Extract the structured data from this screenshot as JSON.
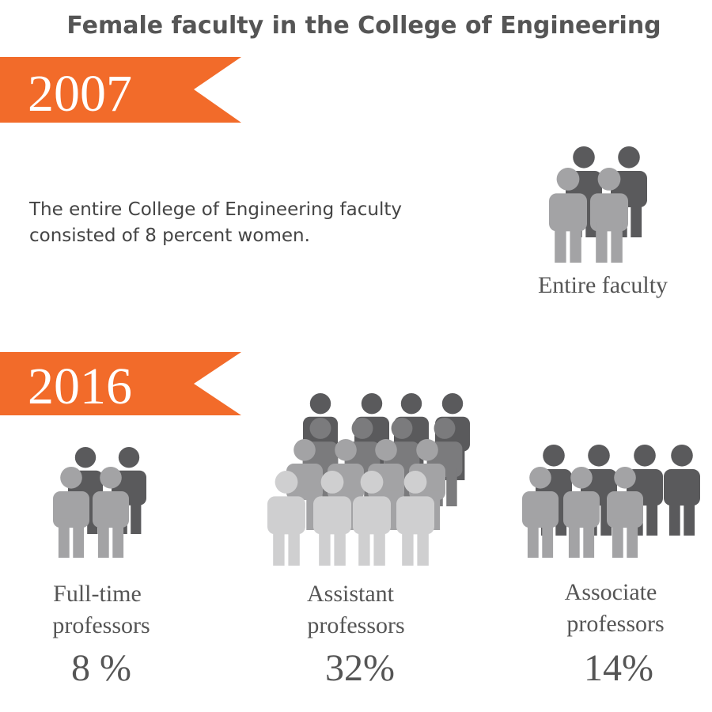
{
  "title": "Female faculty in the College of Engineering",
  "sections": [
    {
      "year": "2007",
      "description": [
        "The entire College of Engineering faculty",
        "consisted of 8 percent women."
      ],
      "groups": [
        {
          "label": [
            "Entire faculty"
          ]
        }
      ]
    },
    {
      "year": "2016",
      "groups": [
        {
          "label": [
            "Full-time",
            "professors"
          ],
          "value": "8 %"
        },
        {
          "label": [
            "Assistant",
            "professors"
          ],
          "value": "32%"
        },
        {
          "label": [
            "Associate",
            "professors"
          ],
          "value": "14%"
        }
      ]
    }
  ]
}
